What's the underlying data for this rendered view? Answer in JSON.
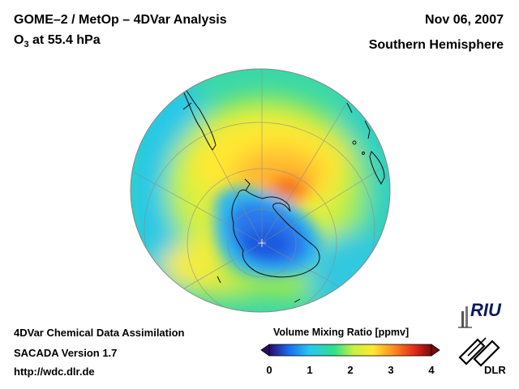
{
  "header": {
    "title": "GOME–2 / MetOp – 4DVar Analysis",
    "species": "O",
    "species_sub": "3",
    "level": " at 55.4 hPa",
    "date": "Nov 06, 2007",
    "hemisphere": "Southern Hemisphere"
  },
  "footer": {
    "line1": "4DVar Chemical Data Assimilation",
    "line2": "SACADA Version 1.7",
    "line3": "http://wdc.dlr.de"
  },
  "colorbar": {
    "title": "Volume Mixing Ratio [ppmv]",
    "min": 0,
    "max": 4,
    "tick_labels": [
      "0",
      "1",
      "2",
      "3",
      "4"
    ],
    "colors": [
      "#2a0a6a",
      "#1a6cf0",
      "#27c8f0",
      "#2ee08a",
      "#c8f040",
      "#ffe830",
      "#ff9020",
      "#e02818",
      "#7a0a10"
    ]
  },
  "logos": {
    "riu": "RIU",
    "dlr": "DLR"
  }
}
